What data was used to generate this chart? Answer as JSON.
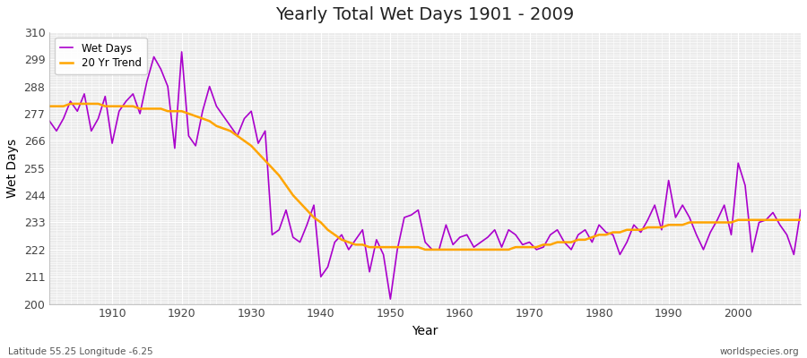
{
  "title": "Yearly Total Wet Days 1901 - 2009",
  "xlabel": "Year",
  "ylabel": "Wet Days",
  "xlim": [
    1901,
    2009
  ],
  "ylim": [
    200,
    310
  ],
  "yticks": [
    200,
    211,
    222,
    233,
    244,
    255,
    266,
    277,
    288,
    299,
    310
  ],
  "xticks": [
    1910,
    1920,
    1930,
    1940,
    1950,
    1960,
    1970,
    1980,
    1990,
    2000
  ],
  "wet_days_color": "#AA00CC",
  "trend_color": "#FFA500",
  "bg_color": "#EBEBEB",
  "plot_bg_color": "#EBEBEB",
  "grid_color": "#FFFFFF",
  "bottom_left_text": "Latitude 55.25 Longitude -6.25",
  "bottom_right_text": "worldspecies.org",
  "wet_days_label": "Wet Days",
  "trend_label": "20 Yr Trend",
  "years": [
    1901,
    1902,
    1903,
    1904,
    1905,
    1906,
    1907,
    1908,
    1909,
    1910,
    1911,
    1912,
    1913,
    1914,
    1915,
    1916,
    1917,
    1918,
    1919,
    1920,
    1921,
    1922,
    1923,
    1924,
    1925,
    1926,
    1927,
    1928,
    1929,
    1930,
    1931,
    1932,
    1933,
    1934,
    1935,
    1936,
    1937,
    1938,
    1939,
    1940,
    1941,
    1942,
    1943,
    1944,
    1945,
    1946,
    1947,
    1948,
    1949,
    1950,
    1951,
    1952,
    1953,
    1954,
    1955,
    1956,
    1957,
    1958,
    1959,
    1960,
    1961,
    1962,
    1963,
    1964,
    1965,
    1966,
    1967,
    1968,
    1969,
    1970,
    1971,
    1972,
    1973,
    1974,
    1975,
    1976,
    1977,
    1978,
    1979,
    1980,
    1981,
    1982,
    1983,
    1984,
    1985,
    1986,
    1987,
    1988,
    1989,
    1990,
    1991,
    1992,
    1993,
    1994,
    1995,
    1996,
    1997,
    1998,
    1999,
    2000,
    2001,
    2002,
    2003,
    2004,
    2005,
    2006,
    2007,
    2008,
    2009
  ],
  "wet_days": [
    274,
    270,
    275,
    282,
    278,
    285,
    270,
    275,
    284,
    265,
    278,
    282,
    285,
    277,
    290,
    300,
    295,
    288,
    263,
    302,
    268,
    264,
    278,
    288,
    280,
    276,
    272,
    268,
    275,
    278,
    265,
    270,
    228,
    230,
    238,
    227,
    225,
    232,
    240,
    211,
    215,
    225,
    228,
    222,
    226,
    230,
    213,
    226,
    220,
    202,
    222,
    235,
    236,
    238,
    225,
    222,
    222,
    232,
    224,
    227,
    228,
    223,
    225,
    227,
    230,
    223,
    230,
    228,
    224,
    225,
    222,
    223,
    228,
    230,
    225,
    222,
    228,
    230,
    225,
    232,
    229,
    228,
    220,
    225,
    232,
    229,
    234,
    240,
    230,
    250,
    235,
    240,
    235,
    228,
    222,
    229,
    234,
    240,
    228,
    257,
    248,
    221,
    233,
    234,
    237,
    232,
    228,
    220,
    238
  ],
  "trend": [
    280,
    280,
    280,
    281,
    281,
    281,
    281,
    281,
    280,
    280,
    280,
    280,
    280,
    279,
    279,
    279,
    279,
    278,
    278,
    278,
    277,
    276,
    275,
    274,
    272,
    271,
    270,
    268,
    266,
    264,
    261,
    258,
    255,
    252,
    248,
    244,
    241,
    238,
    235,
    233,
    230,
    228,
    226,
    225,
    224,
    224,
    223,
    223,
    223,
    223,
    223,
    223,
    223,
    223,
    222,
    222,
    222,
    222,
    222,
    222,
    222,
    222,
    222,
    222,
    222,
    222,
    222,
    223,
    223,
    223,
    223,
    224,
    224,
    225,
    225,
    225,
    226,
    226,
    227,
    228,
    228,
    229,
    229,
    230,
    230,
    230,
    231,
    231,
    231,
    232,
    232,
    232,
    233,
    233,
    233,
    233,
    233,
    233,
    233,
    234,
    234,
    234,
    234,
    234,
    234,
    234,
    234,
    234,
    234
  ]
}
